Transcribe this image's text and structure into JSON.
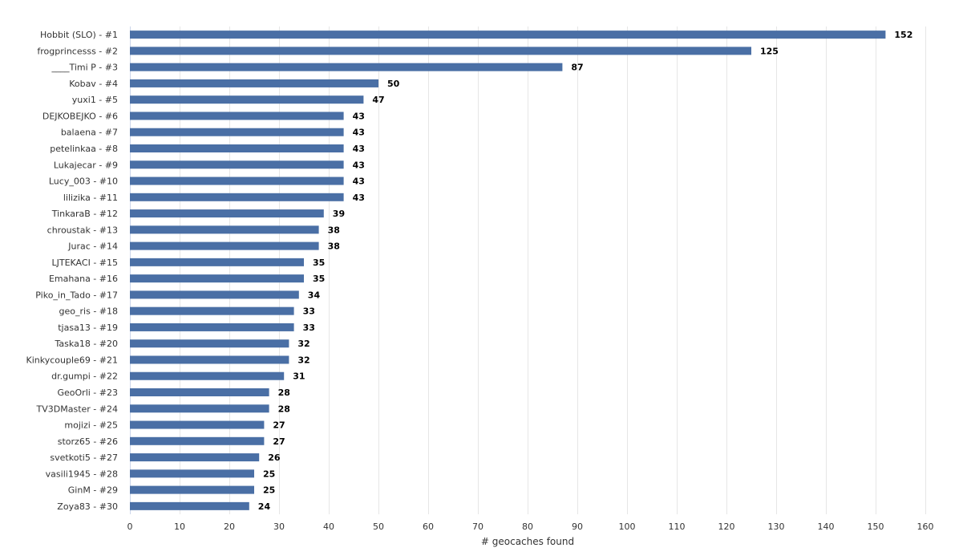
{
  "chart_data": {
    "type": "bar",
    "orientation": "horizontal",
    "categories": [
      "Hobbit (SLO) - #1",
      "frogprincesss - #2",
      "____Timi P - #3",
      "Kobav - #4",
      "yuxi1 - #5",
      "DEJKOBEJKO - #6",
      "balaena - #7",
      "petelinkaa - #8",
      "Lukajecar - #9",
      "Lucy_003 - #10",
      "lilizika - #11",
      "TinkaraB - #12",
      "chroustak - #13",
      "Jurac - #14",
      "LJTEKACI - #15",
      "Emahana - #16",
      "Piko_in_Tado - #17",
      "geo_ris - #18",
      "tjasa13 - #19",
      "Taska18 - #20",
      "Kinkycouple69 - #21",
      "dr.gumpi - #22",
      "GeoOrli - #23",
      "TV3DMaster - #24",
      "mojizi - #25",
      "storz65 - #26",
      "svetkoti5 - #27",
      "vasili1945 - #28",
      "GinM - #29",
      "Zoya83 - #30"
    ],
    "values": [
      152,
      125,
      87,
      50,
      47,
      43,
      43,
      43,
      43,
      43,
      43,
      39,
      38,
      38,
      35,
      35,
      34,
      33,
      33,
      32,
      32,
      31,
      28,
      28,
      27,
      27,
      26,
      25,
      25,
      24
    ],
    "xlabel": "# geocaches found",
    "ylabel": "",
    "title": "",
    "xlim": [
      0,
      160
    ],
    "xticks": [
      0,
      10,
      20,
      30,
      40,
      50,
      60,
      70,
      80,
      90,
      100,
      110,
      120,
      130,
      140,
      150,
      160
    ],
    "grid": "vertical",
    "bar_color": "#4a6fa5",
    "data_labels": true
  }
}
